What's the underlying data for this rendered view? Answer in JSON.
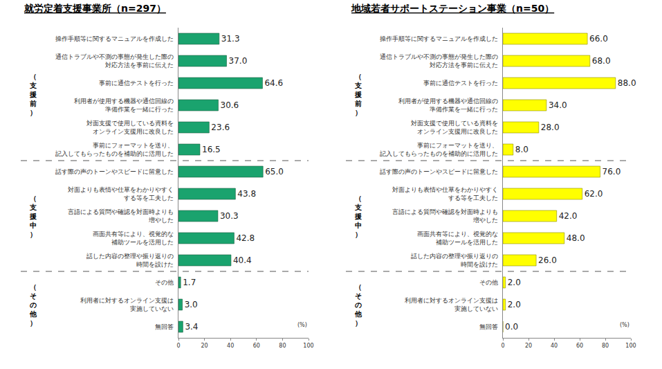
{
  "chart_data": [
    {
      "type": "bar",
      "orientation": "horizontal",
      "title": "就労定着支援事業所（n=297）",
      "categories": [
        "操作手順等に関するマニュアルを作成した",
        "通信トラブルや不測の事態が発生した際の\n対応方法を事前に伝えた",
        "事前に通信テストを行った",
        "利用者が使用する機器や通信回線の\n準備作業を一緒に行った",
        "対面支援で使用している資料を\nオンライン支援用に改良した",
        "事前にフォーマットを送り、\n記入してもらったものを補助的に活用した",
        "話す際の声のトーンやスピードに留意した",
        "対面よりも表情や仕草をわかりやすく\nする等を工夫した",
        "言語による質問や確認を対面時よりも\n増やした",
        "画面共有等により、視覚的な\n補助ツールを活用した",
        "話した内容の整理や振り返りの\n時間を設けた",
        "その他",
        "利用者に対するオンライン支援は\n実施していない",
        "無回答"
      ],
      "values": [
        31.3,
        37.0,
        64.6,
        30.6,
        23.6,
        16.5,
        65.0,
        43.8,
        30.3,
        42.8,
        40.4,
        1.7,
        3.0,
        3.4
      ],
      "value_labels": [
        "31.3",
        "37.0",
        "64.6",
        "30.6",
        "23.6",
        "16.5",
        "65.0",
        "43.8",
        "30.3",
        "42.8",
        "40.4",
        "1.7",
        "3.0",
        "3.4"
      ],
      "groups": [
        {
          "label": "（支援前）",
          "categories": [
            "操作手順等に関するマニュアルを作成した",
            "通信トラブルや不測の事態が発生した際の\n対応方法を事前に伝えた",
            "事前に通信テストを行った",
            "利用者が使用する機器や通信回線の\n準備作業を一緒に行った",
            "対面支援で使用している資料を\nオンライン支援用に改良した",
            "事前にフォーマットを送り、\n記入してもらったものを補助的に活用した"
          ]
        },
        {
          "label": "（支援中）",
          "categories": [
            "話す際の声のトーンやスピードに留意した",
            "対面よりも表情や仕草をわかりやすく\nする等を工夫した",
            "言語による質問や確認を対面時よりも\n増やした",
            "画面共有等により、視覚的な\n補助ツールを活用した",
            "話した内容の整理や振り返りの\n時間を設けた"
          ]
        },
        {
          "label": "（その他）",
          "categories": [
            "その他",
            "利用者に対するオンライン支援は\n実施していない",
            "無回答"
          ]
        }
      ],
      "color": "#1aa36e",
      "xlim": [
        0,
        100
      ],
      "xticks": [
        0,
        20,
        40,
        60,
        80,
        100
      ],
      "xlabel": "(%)",
      "data_labels": true,
      "grid": false
    },
    {
      "type": "bar",
      "orientation": "horizontal",
      "title": "地域若者サポートステーション事業（n=50）",
      "categories": [
        "操作手順等に関するマニュアルを作成した",
        "通信トラブルや不測の事態が発生した際の\n対応方法を事前に伝えた",
        "事前に通信テストを行った",
        "利用者が使用する機器や通信回線の\n準備作業を一緒に行った",
        "対面支援で使用している資料を\nオンライン支援用に改良した",
        "事前にフォーマットを送り、\n記入してもらったものを補助的に活用した",
        "話す際の声のトーンやスピードに留意した",
        "対面よりも表情や仕草をわかりやすく\nする等を工夫した",
        "言語による質問や確認を対面時よりも\n増やした",
        "画面共有等により、視覚的な\n補助ツールを活用した",
        "話した内容の整理や振り返りの\n時間を設けた",
        "その他",
        "利用者に対するオンライン支援は\n実施していない",
        "無回答"
      ],
      "values": [
        66.0,
        68.0,
        88.0,
        34.0,
        28.0,
        8.0,
        76.0,
        62.0,
        42.0,
        48.0,
        26.0,
        2.0,
        2.0,
        0.0
      ],
      "value_labels": [
        "66.0",
        "68.0",
        "88.0",
        "34.0",
        "28.0",
        "8.0",
        "76.0",
        "62.0",
        "42.0",
        "48.0",
        "26.0",
        "2.0",
        "2.0",
        "0.0"
      ],
      "groups": [
        {
          "label": "（支援前）",
          "categories": [
            "操作手順等に関するマニュアルを作成した",
            "通信トラブルや不測の事態が発生した際の\n対応方法を事前に伝えた",
            "事前に通信テストを行った",
            "利用者が使用する機器や通信回線の\n準備作業を一緒に行った",
            "対面支援で使用している資料を\nオンライン支援用に改良した",
            "事前にフォーマットを送り、\n記入してもらったものを補助的に活用した"
          ]
        },
        {
          "label": "（支援中）",
          "categories": [
            "話す際の声のトーンやスピードに留意した",
            "対面よりも表情や仕草をわかりやすく\nする等を工夫した",
            "言語による質問や確認を対面時よりも\n増やした",
            "画面共有等により、視覚的な\n補助ツールを活用した",
            "話した内容の整理や振り返りの\n時間を設けた"
          ]
        },
        {
          "label": "（その他）",
          "categories": [
            "その他",
            "利用者に対するオンライン支援は\n実施していない",
            "無回答"
          ]
        }
      ],
      "color": "#ffff00",
      "xlim": [
        0,
        100
      ],
      "xticks": [
        0,
        20,
        40,
        60,
        80,
        100
      ],
      "xlabel": "(%)",
      "data_labels": true,
      "grid": false
    }
  ]
}
